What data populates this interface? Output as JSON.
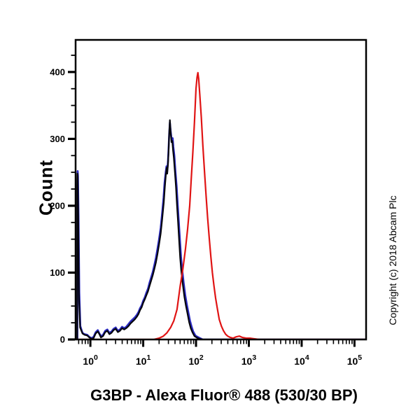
{
  "figure": {
    "title": "G3BP - Alexa Fluor® 488 (530/30 BP)",
    "y_axis_label": "Count",
    "copyright": "Copyright (c) 2018 Abcam Plc"
  },
  "colors": {
    "background": "#ffffff",
    "axis": "#000000",
    "text": "#000000",
    "black_curve": "#05050d",
    "blue_curve": "#2a2ac2",
    "red_curve": "#e01414"
  },
  "chart_data": {
    "type": "line",
    "title": "G3BP - Alexa Fluor® 488 (530/30 BP)",
    "xlabel": "G3BP - Alexa Fluor® 488 (530/30 BP)",
    "ylabel": "Count",
    "x_scale": "log10",
    "xlim_log10": [
      -0.28,
      5.22
    ],
    "ylim": [
      0,
      448
    ],
    "grid": false,
    "legend": null,
    "x_major_ticks": [
      {
        "log10": 0,
        "base": "10",
        "exponent": "0"
      },
      {
        "log10": 1,
        "base": "10",
        "exponent": "1"
      },
      {
        "log10": 2,
        "base": "10",
        "exponent": "2"
      },
      {
        "log10": 3,
        "base": "10",
        "exponent": "3"
      },
      {
        "log10": 4,
        "base": "10",
        "exponent": "4"
      },
      {
        "log10": 5,
        "base": "10",
        "exponent": "5"
      }
    ],
    "x_minor_tick_mantissas": [
      2,
      3,
      4,
      5,
      6,
      7,
      8,
      9
    ],
    "y_major_ticks": [
      0,
      100,
      200,
      300,
      400
    ],
    "y_minor_tick_step": 25,
    "series": [
      {
        "name": "blue-curve",
        "color_key": "blue_curve",
        "stroke_width": 2.6,
        "points_log10x_count": [
          [
            -0.245,
            0
          ],
          [
            -0.245,
            238
          ],
          [
            -0.24,
            252
          ],
          [
            -0.235,
            245
          ],
          [
            -0.225,
            185
          ],
          [
            -0.21,
            70
          ],
          [
            -0.19,
            20
          ],
          [
            -0.15,
            10
          ],
          [
            -0.11,
            8
          ],
          [
            -0.06,
            7
          ],
          [
            -0.02,
            4
          ],
          [
            0.02,
            2
          ],
          [
            0.06,
            4
          ],
          [
            0.1,
            11
          ],
          [
            0.14,
            14
          ],
          [
            0.17,
            9
          ],
          [
            0.2,
            5
          ],
          [
            0.24,
            7
          ],
          [
            0.28,
            13
          ],
          [
            0.32,
            15
          ],
          [
            0.36,
            10
          ],
          [
            0.4,
            12
          ],
          [
            0.44,
            16
          ],
          [
            0.48,
            18
          ],
          [
            0.52,
            13
          ],
          [
            0.56,
            15
          ],
          [
            0.6,
            19
          ],
          [
            0.64,
            17
          ],
          [
            0.68,
            19
          ],
          [
            0.72,
            23
          ],
          [
            0.76,
            27
          ],
          [
            0.8,
            30
          ],
          [
            0.84,
            33
          ],
          [
            0.88,
            37
          ],
          [
            0.91,
            41
          ],
          [
            0.94,
            47
          ],
          [
            0.97,
            51
          ],
          [
            1.0,
            58
          ],
          [
            1.03,
            63
          ],
          [
            1.06,
            70
          ],
          [
            1.09,
            76
          ],
          [
            1.12,
            85
          ],
          [
            1.15,
            93
          ],
          [
            1.18,
            101
          ],
          [
            1.21,
            111
          ],
          [
            1.24,
            122
          ],
          [
            1.27,
            136
          ],
          [
            1.3,
            150
          ],
          [
            1.33,
            167
          ],
          [
            1.36,
            190
          ],
          [
            1.385,
            212
          ],
          [
            1.405,
            235
          ],
          [
            1.425,
            250
          ],
          [
            1.44,
            259
          ],
          [
            1.452,
            250
          ],
          [
            1.468,
            266
          ],
          [
            1.48,
            285
          ],
          [
            1.492,
            308
          ],
          [
            1.505,
            325
          ],
          [
            1.52,
            312
          ],
          [
            1.538,
            299
          ],
          [
            1.558,
            301
          ],
          [
            1.572,
            288
          ],
          [
            1.59,
            275
          ],
          [
            1.61,
            252
          ],
          [
            1.632,
            230
          ],
          [
            1.653,
            202
          ],
          [
            1.673,
            177
          ],
          [
            1.695,
            150
          ],
          [
            1.716,
            124
          ],
          [
            1.737,
            105
          ],
          [
            1.767,
            84
          ],
          [
            1.797,
            66
          ],
          [
            1.827,
            52
          ],
          [
            1.857,
            40
          ],
          [
            1.887,
            28
          ],
          [
            1.917,
            19
          ],
          [
            1.947,
            12
          ],
          [
            1.987,
            6
          ],
          [
            2.027,
            4
          ],
          [
            2.076,
            2
          ],
          [
            2.13,
            0
          ],
          [
            5.22,
            0
          ]
        ]
      },
      {
        "name": "black-curve",
        "color_key": "black_curve",
        "stroke_width": 2.2,
        "points_log10x_count": [
          [
            -0.25,
            0
          ],
          [
            -0.25,
            230
          ],
          [
            -0.245,
            248
          ],
          [
            -0.24,
            243
          ],
          [
            -0.23,
            180
          ],
          [
            -0.215,
            60
          ],
          [
            -0.195,
            18
          ],
          [
            -0.15,
            9
          ],
          [
            -0.11,
            7
          ],
          [
            -0.06,
            6
          ],
          [
            -0.02,
            3
          ],
          [
            0.02,
            1
          ],
          [
            0.06,
            2
          ],
          [
            0.1,
            9
          ],
          [
            0.14,
            12
          ],
          [
            0.17,
            8
          ],
          [
            0.2,
            3
          ],
          [
            0.24,
            5
          ],
          [
            0.28,
            11
          ],
          [
            0.32,
            13
          ],
          [
            0.36,
            8
          ],
          [
            0.4,
            10
          ],
          [
            0.44,
            14
          ],
          [
            0.48,
            16
          ],
          [
            0.52,
            11
          ],
          [
            0.56,
            13
          ],
          [
            0.6,
            17
          ],
          [
            0.64,
            15
          ],
          [
            0.68,
            17
          ],
          [
            0.72,
            20
          ],
          [
            0.76,
            24
          ],
          [
            0.8,
            27
          ],
          [
            0.84,
            30
          ],
          [
            0.88,
            34
          ],
          [
            0.91,
            38
          ],
          [
            0.94,
            44
          ],
          [
            0.97,
            48
          ],
          [
            1.0,
            55
          ],
          [
            1.03,
            60
          ],
          [
            1.06,
            66
          ],
          [
            1.09,
            72
          ],
          [
            1.12,
            80
          ],
          [
            1.15,
            88
          ],
          [
            1.18,
            96
          ],
          [
            1.21,
            105
          ],
          [
            1.24,
            115
          ],
          [
            1.27,
            128
          ],
          [
            1.3,
            142
          ],
          [
            1.33,
            158
          ],
          [
            1.36,
            180
          ],
          [
            1.39,
            205
          ],
          [
            1.41,
            228
          ],
          [
            1.43,
            247
          ],
          [
            1.445,
            257
          ],
          [
            1.455,
            248
          ],
          [
            1.47,
            262
          ],
          [
            1.48,
            280
          ],
          [
            1.49,
            305
          ],
          [
            1.505,
            328
          ],
          [
            1.52,
            310
          ],
          [
            1.535,
            295
          ],
          [
            1.55,
            297
          ],
          [
            1.565,
            283
          ],
          [
            1.58,
            272
          ],
          [
            1.6,
            250
          ],
          [
            1.62,
            228
          ],
          [
            1.64,
            200
          ],
          [
            1.66,
            175
          ],
          [
            1.68,
            148
          ],
          [
            1.7,
            122
          ],
          [
            1.72,
            103
          ],
          [
            1.75,
            82
          ],
          [
            1.78,
            64
          ],
          [
            1.81,
            50
          ],
          [
            1.84,
            38
          ],
          [
            1.87,
            26
          ],
          [
            1.9,
            17
          ],
          [
            1.93,
            11
          ],
          [
            1.97,
            5
          ],
          [
            2.01,
            3
          ],
          [
            2.06,
            1
          ],
          [
            2.12,
            0
          ],
          [
            5.22,
            0
          ]
        ]
      },
      {
        "name": "red-curve",
        "color_key": "red_curve",
        "stroke_width": 2.2,
        "points_log10x_count": [
          [
            -0.28,
            0
          ],
          [
            1.2,
            0
          ],
          [
            1.3,
            2
          ],
          [
            1.38,
            5
          ],
          [
            1.45,
            10
          ],
          [
            1.52,
            18
          ],
          [
            1.58,
            28
          ],
          [
            1.64,
            45
          ],
          [
            1.7,
            80
          ],
          [
            1.75,
            105
          ],
          [
            1.8,
            135
          ],
          [
            1.84,
            165
          ],
          [
            1.88,
            200
          ],
          [
            1.91,
            240
          ],
          [
            1.94,
            280
          ],
          [
            1.97,
            325
          ],
          [
            2.0,
            375
          ],
          [
            2.02,
            392
          ],
          [
            2.035,
            399
          ],
          [
            2.05,
            390
          ],
          [
            2.07,
            368
          ],
          [
            2.1,
            332
          ],
          [
            2.13,
            290
          ],
          [
            2.16,
            252
          ],
          [
            2.19,
            215
          ],
          [
            2.22,
            182
          ],
          [
            2.25,
            152
          ],
          [
            2.28,
            124
          ],
          [
            2.31,
            100
          ],
          [
            2.34,
            80
          ],
          [
            2.37,
            62
          ],
          [
            2.4,
            48
          ],
          [
            2.44,
            30
          ],
          [
            2.48,
            20
          ],
          [
            2.52,
            13
          ],
          [
            2.56,
            8
          ],
          [
            2.6,
            5
          ],
          [
            2.65,
            3
          ],
          [
            2.7,
            2
          ],
          [
            2.76,
            4
          ],
          [
            2.82,
            5
          ],
          [
            2.88,
            3
          ],
          [
            2.95,
            2
          ],
          [
            3.02,
            2
          ],
          [
            3.1,
            1
          ],
          [
            3.2,
            0
          ],
          [
            5.22,
            0
          ]
        ]
      }
    ]
  }
}
